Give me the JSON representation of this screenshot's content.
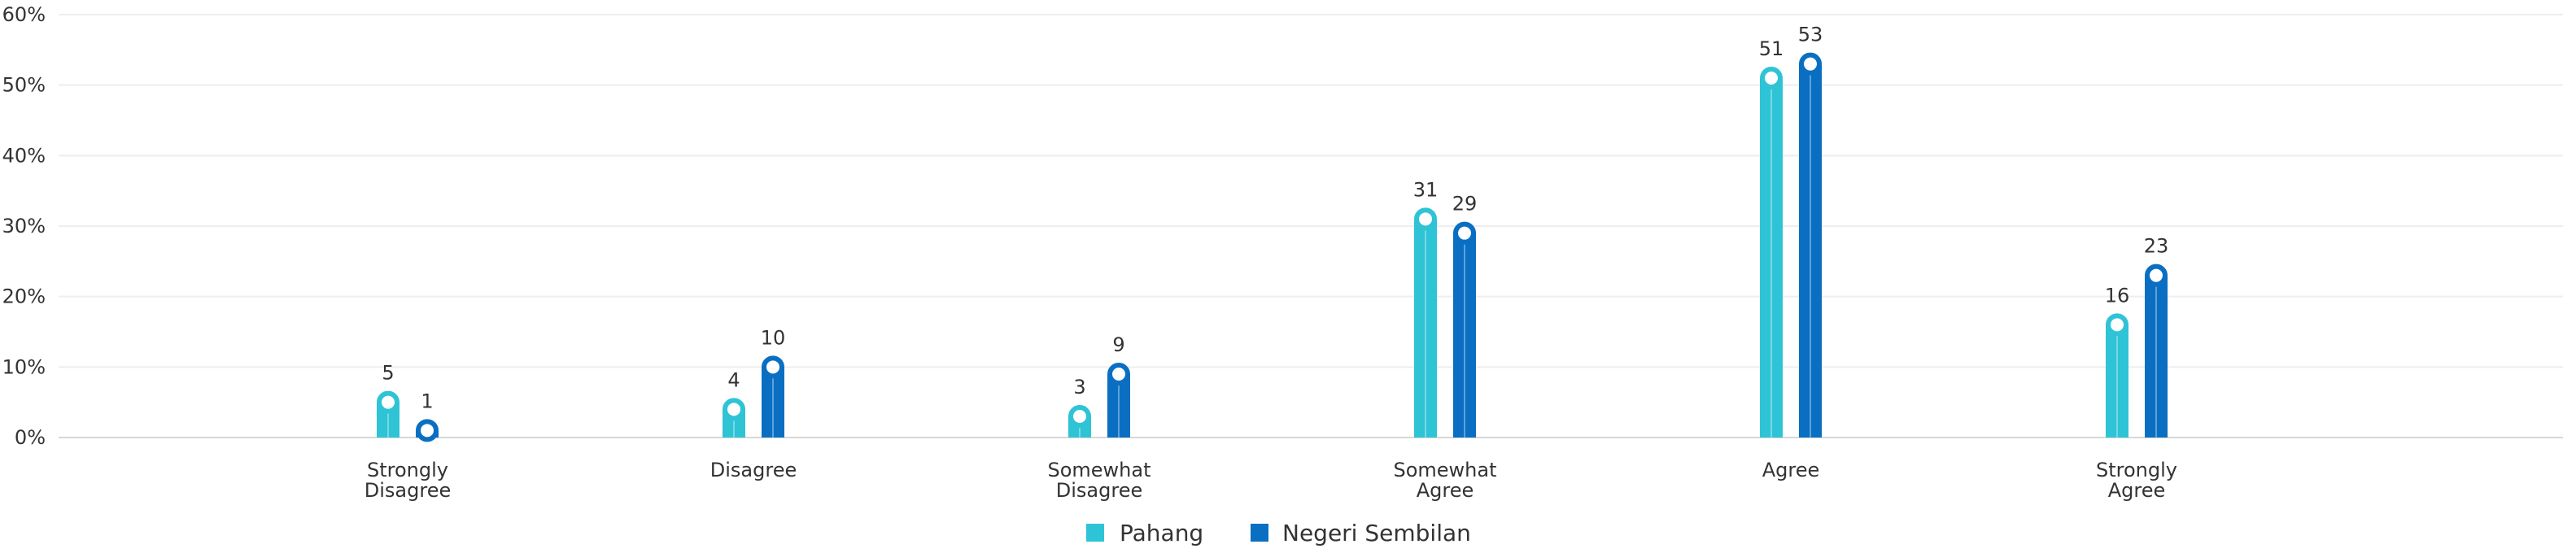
{
  "chart_data": {
    "type": "bar",
    "categories": [
      [
        "Strongly",
        "Disagree"
      ],
      [
        "Disagree"
      ],
      [
        "Somewhat",
        "Disagree"
      ],
      [
        "Somewhat",
        "Agree"
      ],
      [
        "Agree"
      ],
      [
        "Strongly",
        "Agree"
      ]
    ],
    "series": [
      {
        "name": "Pahang",
        "color": "#2EC4D6",
        "values": [
          5,
          4,
          3,
          31,
          51,
          16
        ]
      },
      {
        "name": "Negeri Sembilan",
        "color": "#0A6FC2",
        "values": [
          1,
          10,
          9,
          29,
          53,
          23
        ]
      }
    ],
    "y_ticks": [
      "0%",
      "10%",
      "20%",
      "30%",
      "40%",
      "50%",
      "60%"
    ],
    "ylim": [
      0,
      60
    ],
    "grid": true,
    "legend_position": "bottom-center",
    "data_labels": true
  }
}
